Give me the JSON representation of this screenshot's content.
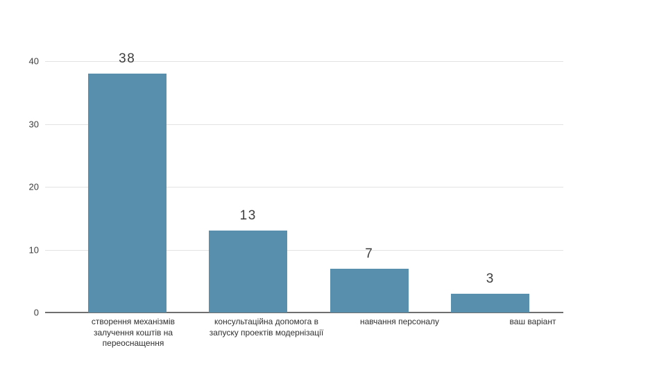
{
  "chart_data": {
    "type": "bar",
    "title": "",
    "xlabel": "",
    "ylabel": "",
    "categories": [
      "створення механізмів залучення коштів на переоснащення",
      "консультаційна допомога в запуску проектів модернізації",
      "навчання персоналу",
      "ваш варіант"
    ],
    "category_lines": [
      [
        "створення механізмів",
        "залучення коштів на",
        "переоснащення"
      ],
      [
        "консультаційна допомога в",
        "запуску проектів модернізації"
      ],
      [
        "навчання персоналу"
      ],
      [
        "ваш варіант"
      ]
    ],
    "values": [
      38,
      13,
      7,
      3
    ],
    "value_labels": [
      "38",
      "13",
      "7",
      "3"
    ],
    "ylim": [
      0,
      40
    ],
    "yticks": [
      0,
      10,
      20,
      30,
      40
    ],
    "ytick_labels": [
      "40",
      "30",
      "20",
      "10",
      "0"
    ],
    "grid": true,
    "legend_position": "none",
    "bar_color": "#588FAC"
  },
  "colors": {
    "bar": "#588FAC",
    "gridline": "#e2e2e2",
    "axis": "#6f6f6f",
    "valueText": "#3d3d3d",
    "labelText": "#2f2f2f",
    "tickText": "#3d3d3d",
    "background": "#ffffff"
  }
}
